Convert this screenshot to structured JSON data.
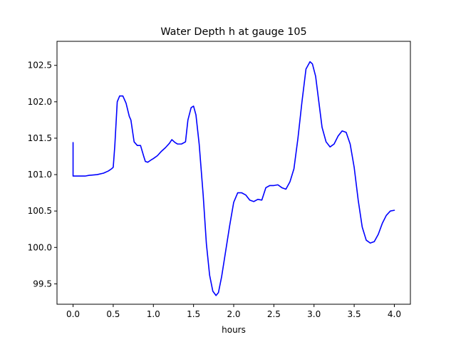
{
  "chart_data": {
    "type": "line",
    "title": "Water Depth h at gauge 105",
    "xlabel": "hours",
    "ylabel": "",
    "xlim": [
      -0.2,
      4.2
    ],
    "ylim": [
      99.22,
      102.83
    ],
    "xticks": [
      0.0,
      0.5,
      1.0,
      1.5,
      2.0,
      2.5,
      3.0,
      3.5,
      4.0
    ],
    "xtick_labels": [
      "0.0",
      "0.5",
      "1.0",
      "1.5",
      "2.0",
      "2.5",
      "3.0",
      "3.5",
      "4.0"
    ],
    "yticks": [
      99.5,
      100.0,
      100.5,
      101.0,
      101.5,
      102.0,
      102.5
    ],
    "ytick_labels": [
      "99.5",
      "100.0",
      "100.5",
      "101.0",
      "101.5",
      "102.0",
      "102.5"
    ],
    "grid": false,
    "legend": "none",
    "series": [
      {
        "color": "#0000ff",
        "x": [
          0.0,
          0.0,
          0.05,
          0.15,
          0.2,
          0.3,
          0.38,
          0.44,
          0.48,
          0.5,
          0.52,
          0.55,
          0.58,
          0.62,
          0.66,
          0.7,
          0.72,
          0.76,
          0.8,
          0.84,
          0.88,
          0.9,
          0.93,
          0.97,
          1.0,
          1.05,
          1.1,
          1.15,
          1.2,
          1.23,
          1.27,
          1.3,
          1.35,
          1.4,
          1.43,
          1.47,
          1.5,
          1.53,
          1.57,
          1.62,
          1.66,
          1.7,
          1.74,
          1.78,
          1.81,
          1.85,
          1.9,
          1.95,
          2.0,
          2.05,
          2.1,
          2.15,
          2.2,
          2.25,
          2.3,
          2.35,
          2.4,
          2.45,
          2.5,
          2.55,
          2.6,
          2.65,
          2.7,
          2.75,
          2.8,
          2.85,
          2.9,
          2.95,
          2.98,
          3.02,
          3.06,
          3.1,
          3.15,
          3.2,
          3.25,
          3.3,
          3.35,
          3.4,
          3.45,
          3.5,
          3.55,
          3.6,
          3.65,
          3.7,
          3.75,
          3.8,
          3.85,
          3.9,
          3.95,
          4.0
        ],
        "y": [
          101.44,
          100.98,
          100.98,
          100.98,
          100.99,
          101.0,
          101.02,
          101.05,
          101.08,
          101.1,
          101.4,
          102.0,
          102.08,
          102.08,
          101.98,
          101.8,
          101.75,
          101.45,
          101.4,
          101.4,
          101.25,
          101.18,
          101.17,
          101.2,
          101.22,
          101.26,
          101.32,
          101.37,
          101.43,
          101.48,
          101.44,
          101.42,
          101.42,
          101.45,
          101.75,
          101.92,
          101.94,
          101.82,
          101.42,
          100.72,
          100.05,
          99.62,
          99.4,
          99.34,
          99.38,
          99.6,
          99.95,
          100.3,
          100.62,
          100.75,
          100.75,
          100.72,
          100.65,
          100.63,
          100.66,
          100.65,
          100.82,
          100.85,
          100.85,
          100.86,
          100.82,
          100.8,
          100.9,
          101.08,
          101.5,
          102.0,
          102.45,
          102.55,
          102.52,
          102.35,
          102.0,
          101.65,
          101.45,
          101.38,
          101.42,
          101.53,
          101.6,
          101.58,
          101.42,
          101.1,
          100.65,
          100.28,
          100.1,
          100.06,
          100.08,
          100.18,
          100.33,
          100.44,
          100.5,
          100.51
        ]
      }
    ]
  }
}
